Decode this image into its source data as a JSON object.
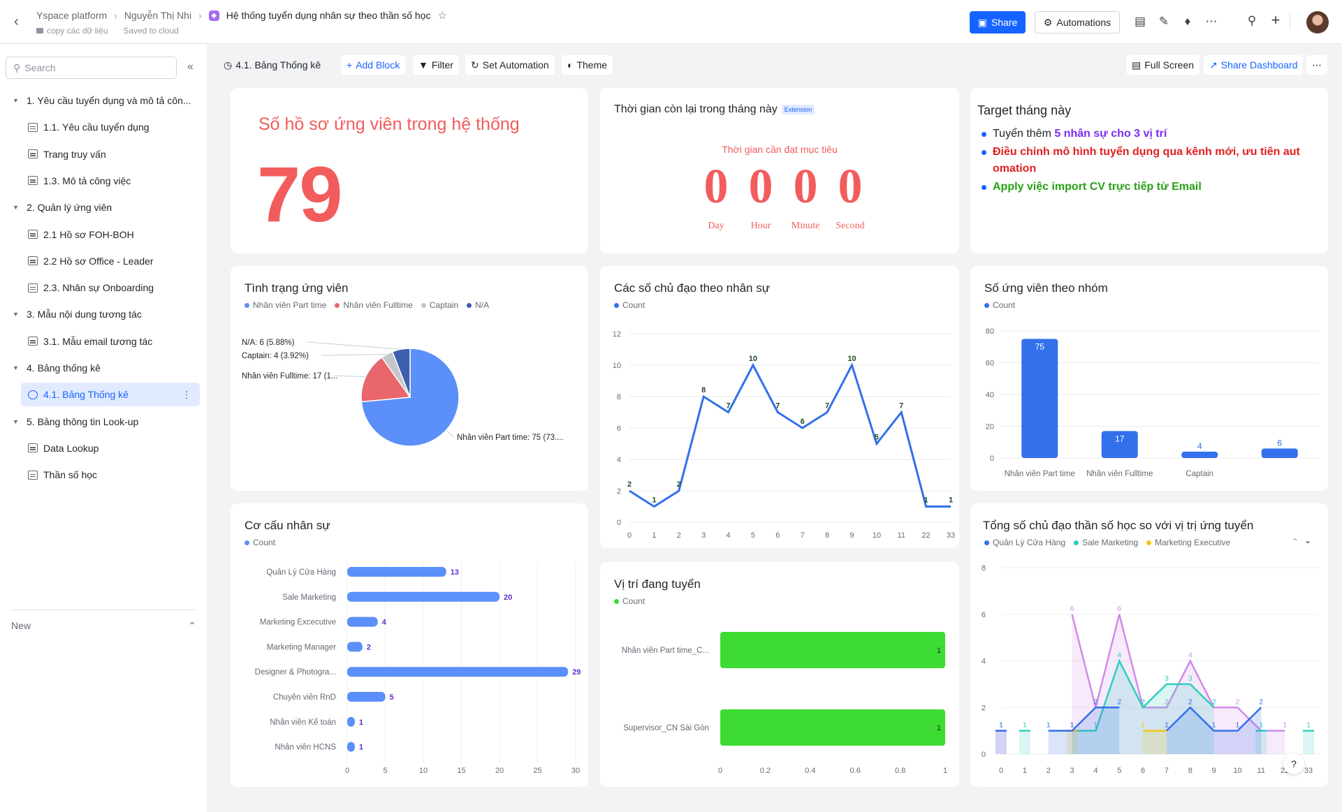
{
  "breadcrumb": {
    "workspace": "Yspace platform",
    "owner": "Nguyễn Thị Nhi",
    "doc": "Hệ thống tuyển dụng nhân sự theo thần số học",
    "folder": "copy các dữ liệu",
    "status": "Saved to cloud"
  },
  "topbar": {
    "share": "Share",
    "automations": "Automations"
  },
  "sidebar": {
    "search_placeholder": "Search",
    "items": [
      {
        "label": "1. Yêu cầu tuyển dụng và mô tả côn...",
        "level": 0
      },
      {
        "label": "1.1. Yêu cầu tuyển dụng",
        "level": 1
      },
      {
        "label": "Trang truy vấn",
        "level": 1
      },
      {
        "label": "1.3. Mô tả công việc",
        "level": 1
      },
      {
        "label": "2. Quản lý ứng viên",
        "level": 0
      },
      {
        "label": "2.1 Hồ sơ FOH-BOH",
        "level": 1
      },
      {
        "label": "2.2 Hồ sơ Office - Leader",
        "level": 1
      },
      {
        "label": "2.3. Nhân sự Onboarding",
        "level": 1
      },
      {
        "label": "3. Mẫu nội dung tương tác",
        "level": 0
      },
      {
        "label": "3.1. Mẫu email tương tác",
        "level": 1
      },
      {
        "label": "4. Bảng thống kê",
        "level": 0
      },
      {
        "label": "4.1. Bảng Thống kê",
        "level": 1,
        "active": true
      },
      {
        "label": "5. Bảng thông tin Look-up",
        "level": 0
      },
      {
        "label": "Data Lookup",
        "level": 1
      },
      {
        "label": "Thần số học",
        "level": 1
      }
    ],
    "new_label": "New"
  },
  "toolbar": {
    "view": "4.1. Bảng Thống kê",
    "add_block": "Add Block",
    "filter": "Filter",
    "automation": "Set Automation",
    "theme": "Theme",
    "full_screen": "Full Screen",
    "share_dashboard": "Share Dashboard"
  },
  "cards": {
    "total": {
      "title": "Số hồ sơ ứng viên trong hệ thống",
      "value": "79"
    },
    "countdown": {
      "title": "Thời gian còn lại trong tháng này",
      "badge": "Extension",
      "subtitle": "Thời gian cần đạt mục tiêu",
      "units": [
        {
          "value": "0",
          "label": "Day"
        },
        {
          "value": "0",
          "label": "Hour"
        },
        {
          "value": "0",
          "label": "Minute"
        },
        {
          "value": "0",
          "label": "Second"
        }
      ]
    },
    "target": {
      "title": "Target tháng này",
      "line1_a": "Tuyển thêm ",
      "line1_b": "5 nhân sự cho 3 vị trí",
      "line2": "Điều chỉnh mô hình tuyển dụng qua kênh mới, ưu tiên aut omation",
      "line3": "Apply việc import CV trực tiếp từ Email",
      "colors": {
        "purple": "#7b2cf0",
        "red": "#e02020",
        "green": "#28a016"
      }
    },
    "pie": {
      "title": "Tình trạng ứng viên"
    },
    "line": {
      "title": "Các số chủ đạo theo nhân sự"
    },
    "bargroup": {
      "title": "Số ứng viên theo nhóm"
    },
    "hbar": {
      "title": "Cơ cấu nhân sự"
    },
    "positions": {
      "title": "Vị trí đang tuyển"
    },
    "multiline": {
      "title": "Tổng số chủ đạo thần số học so với vị trị ứng tuyển"
    }
  },
  "chart_data": [
    {
      "id": "pie",
      "type": "pie",
      "title": "Tình trạng ứng viên",
      "slices": [
        {
          "name": "Nhân viên Part time",
          "value": 75,
          "label": "Nhân viên Part time: 75 (73....",
          "color": "#5b8ff9"
        },
        {
          "name": "Nhân viên Fulltime",
          "value": 17,
          "label": "Nhân viên Fulltime: 17 (1...",
          "color": "#e8666c"
        },
        {
          "name": "Captain",
          "value": 4,
          "label": "Captain: 4 (3.92%)",
          "color": "#c4c6c9"
        },
        {
          "name": "N/A",
          "value": 6,
          "label": "N/A: 6 (5.88%)",
          "color": "#3d5fad"
        }
      ]
    },
    {
      "id": "line",
      "type": "line",
      "title": "Các số chủ đạo theo nhân sự",
      "series": [
        {
          "name": "Count",
          "color": "#3370eb"
        }
      ],
      "x": [
        "0",
        "1",
        "2",
        "3",
        "4",
        "5",
        "6",
        "7",
        "8",
        "9",
        "10",
        "11",
        "22",
        "33"
      ],
      "values": [
        2,
        1,
        2,
        8,
        7,
        10,
        7,
        6,
        7,
        10,
        5,
        7,
        1,
        1
      ],
      "yticks": [
        0,
        2,
        4,
        6,
        8,
        10,
        12
      ],
      "ylim": [
        0,
        12
      ]
    },
    {
      "id": "bargroup",
      "type": "bar",
      "title": "Số ứng viên theo nhóm",
      "series": [
        {
          "name": "Count",
          "color": "#3370eb"
        }
      ],
      "categories": [
        "Nhân viên Part time",
        "Nhân viên Fulltime",
        "Captain",
        ""
      ],
      "values": [
        75,
        17,
        4,
        6
      ],
      "yticks": [
        0,
        20,
        40,
        60,
        80
      ],
      "ylim": [
        0,
        80
      ]
    },
    {
      "id": "hbar",
      "type": "bar",
      "title": "Cơ cấu nhân sự",
      "series": [
        {
          "name": "Count",
          "color": "#5b8ff9"
        }
      ],
      "categories": [
        "Quản Lý Cửa Hàng",
        "Sale Marketing",
        "Marketing Excecutive",
        "Marketing Manager",
        "Designer & Photogra...",
        "Chuyên viên RnD",
        "Nhân viên Kế toán",
        "Nhân viên HCNS"
      ],
      "values": [
        13,
        20,
        4,
        2,
        29,
        5,
        1,
        1
      ],
      "xticks": [
        0,
        5,
        10,
        15,
        20,
        25,
        30
      ],
      "xlim": [
        0,
        30
      ]
    },
    {
      "id": "positions",
      "type": "bar",
      "title": "Vị trí đang tuyển",
      "series": [
        {
          "name": "Count",
          "color": "#3ddc32"
        }
      ],
      "categories": [
        "Nhân viên Part time_C...",
        "Supervisor_CN Sài Gòn"
      ],
      "values": [
        1,
        1
      ],
      "xticks": [
        "0",
        "0.2",
        "0.4",
        "0.6",
        "0.8",
        "1"
      ],
      "xlim": [
        0,
        1
      ]
    },
    {
      "id": "multiline",
      "type": "area",
      "title": "Tổng số chủ đạo thần số học so với vị trị ứng tuyển",
      "x": [
        "0",
        "1",
        "2",
        "3",
        "4",
        "5",
        "6",
        "7",
        "8",
        "9",
        "10",
        "11",
        "22",
        "33"
      ],
      "yticks": [
        0,
        2,
        4,
        6,
        8
      ],
      "ylim": [
        0,
        8
      ],
      "series": [
        {
          "name": "Quản Lý Cửa Hàng",
          "color": "#3370eb",
          "values": [
            1,
            null,
            1,
            1,
            2,
            2,
            null,
            1,
            2,
            1,
            1,
            2,
            null,
            null
          ]
        },
        {
          "name": "Sale Marketing",
          "color": "#2fcfbf",
          "values": [
            null,
            1,
            null,
            1,
            1,
            4,
            2,
            3,
            3,
            2,
            null,
            1,
            null,
            1
          ]
        },
        {
          "name": "Marketing Executive",
          "color": "#f5c518",
          "values": [
            null,
            null,
            null,
            1,
            null,
            null,
            1,
            1,
            null,
            null,
            null,
            null,
            null,
            null
          ]
        },
        {
          "name": "",
          "color": "#d08be8",
          "values": [
            1,
            null,
            null,
            6,
            2,
            6,
            2,
            2,
            4,
            2,
            2,
            1,
            1,
            null
          ]
        }
      ]
    }
  ]
}
